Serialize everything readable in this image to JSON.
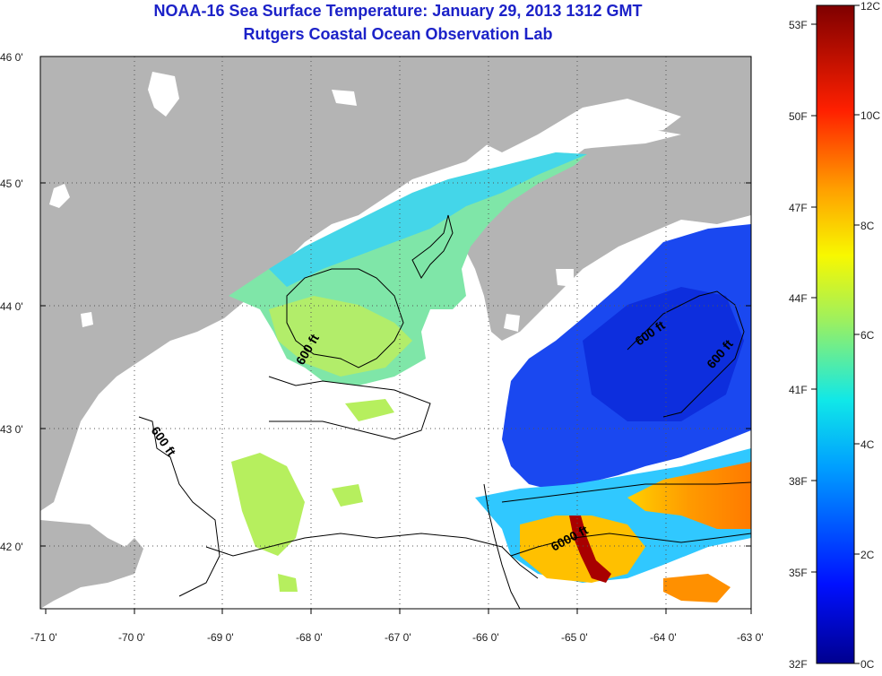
{
  "header": {
    "title": "NOAA-16 Sea Surface Temperature:  January 29, 2013 1312 GMT",
    "subtitle": "Rutgers Coastal Ocean Observation Lab"
  },
  "axes": {
    "lon_ticks": [
      "-71 0'",
      "-70 0'",
      "-69 0'",
      "-68 0'",
      "-67 0'",
      "-66 0'",
      "-65 0'",
      "-64 0'",
      "-63 0'"
    ],
    "lat_ticks": [
      "46 0'",
      "45 0'",
      "44 0'",
      "43 0'",
      "42 0'"
    ]
  },
  "contours": [
    {
      "label": "600 ft"
    },
    {
      "label": "600 ft"
    },
    {
      "label": "600 ft"
    },
    {
      "label": "600 ft"
    },
    {
      "label": "6000 ft"
    }
  ],
  "colorbar": {
    "fahrenheit": [
      "53F",
      "50F",
      "47F",
      "44F",
      "41F",
      "38F",
      "35F",
      "32F"
    ],
    "celsius": [
      "12C",
      "10C",
      "8C",
      "6C",
      "4C",
      "2C",
      "0C"
    ]
  },
  "colors": {
    "land": "#b4b4b4",
    "no_data": "#ffffff",
    "title": "#1c22c8"
  }
}
